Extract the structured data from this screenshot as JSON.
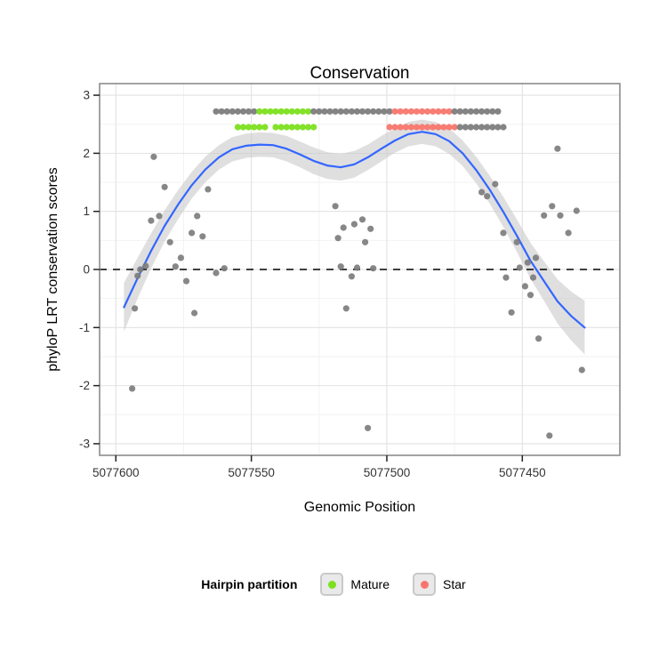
{
  "chart_data": {
    "type": "scatter",
    "title": "Conservation",
    "xlabel": "Genomic Position",
    "ylabel": "phyloP LRT conservation scores",
    "x_reversed": true,
    "x_domain": [
      5077606,
      5077414
    ],
    "y_domain": [
      -3.2,
      3.2
    ],
    "x_ticks": [
      {
        "value": 5077600,
        "label": "5077600"
      },
      {
        "value": 5077550,
        "label": "5077550"
      },
      {
        "value": 5077500,
        "label": "5077500"
      },
      {
        "value": 5077450,
        "label": "5077450"
      }
    ],
    "y_ticks": [
      {
        "value": 3,
        "label": "3"
      },
      {
        "value": 2,
        "label": "2"
      },
      {
        "value": 1,
        "label": "1"
      },
      {
        "value": 0,
        "label": "0"
      },
      {
        "value": -1,
        "label": "-1"
      },
      {
        "value": -2,
        "label": "-2"
      },
      {
        "value": -3,
        "label": "-3"
      }
    ],
    "x_minor": [
      5077575,
      5077525,
      5077475
    ],
    "y_minor": [
      2.5,
      1.5,
      0.5,
      -0.5,
      -1.5,
      -2.5
    ],
    "zero_line_y": 0,
    "colors": {
      "point": "#7d7d7d",
      "smooth": "#3366FF",
      "band": "#c9c9c9",
      "mature": "#7CE01E",
      "star": "#F8766D",
      "grid_major": "#e2e2e2",
      "grid_minor": "#f2f2f2",
      "panel_border": "#8c8c8c",
      "tick_text": "#333333",
      "zero_line": "#000000"
    },
    "scatter": [
      [
        5077594,
        -2.05
      ],
      [
        5077593,
        -0.67
      ],
      [
        5077592,
        -0.11
      ],
      [
        5077591,
        0.0
      ],
      [
        5077589,
        0.06
      ],
      [
        5077587,
        0.84
      ],
      [
        5077586,
        1.94
      ],
      [
        5077584,
        0.92
      ],
      [
        5077582,
        1.42
      ],
      [
        5077580,
        0.47
      ],
      [
        5077578,
        0.05
      ],
      [
        5077576,
        0.2
      ],
      [
        5077574,
        -0.2
      ],
      [
        5077572,
        0.63
      ],
      [
        5077571,
        -0.75
      ],
      [
        5077570,
        0.92
      ],
      [
        5077568,
        0.57
      ],
      [
        5077566,
        1.38
      ],
      [
        5077563,
        -0.06
      ],
      [
        5077560,
        0.02
      ],
      [
        5077519,
        1.09
      ],
      [
        5077518,
        0.54
      ],
      [
        5077517,
        0.05
      ],
      [
        5077516,
        0.72
      ],
      [
        5077515,
        -0.67
      ],
      [
        5077513,
        -0.12
      ],
      [
        5077512,
        0.78
      ],
      [
        5077511,
        0.03
      ],
      [
        5077509,
        0.86
      ],
      [
        5077508,
        0.47
      ],
      [
        5077507,
        -2.73
      ],
      [
        5077506,
        0.7
      ],
      [
        5077505,
        0.02
      ],
      [
        5077465,
        1.33
      ],
      [
        5077463,
        1.26
      ],
      [
        5077460,
        1.47
      ],
      [
        5077457,
        0.63
      ],
      [
        5077456,
        -0.14
      ],
      [
        5077454,
        -0.74
      ],
      [
        5077452,
        0.47
      ],
      [
        5077451,
        0.03
      ],
      [
        5077449,
        -0.29
      ],
      [
        5077448,
        0.12
      ],
      [
        5077447,
        -0.44
      ],
      [
        5077446,
        -0.14
      ],
      [
        5077445,
        0.2
      ],
      [
        5077444,
        -1.19
      ],
      [
        5077442,
        0.93
      ],
      [
        5077440,
        -2.86
      ],
      [
        5077439,
        1.09
      ],
      [
        5077437,
        2.08
      ],
      [
        5077436,
        0.93
      ],
      [
        5077433,
        0.63
      ],
      [
        5077430,
        1.01
      ],
      [
        5077428,
        -1.73
      ]
    ],
    "partition_rows": [
      {
        "y": 2.72,
        "runs": [
          {
            "color": "gray",
            "from": 5077563,
            "to": 5077549,
            "step": 2
          },
          {
            "color": "mature",
            "from": 5077547,
            "to": 5077529,
            "step": 2
          },
          {
            "color": "gray",
            "from": 5077527,
            "to": 5077499,
            "step": 2
          },
          {
            "color": "star",
            "from": 5077497,
            "to": 5077477,
            "step": 2
          },
          {
            "color": "gray",
            "from": 5077475,
            "to": 5077459,
            "step": 2
          }
        ]
      },
      {
        "y": 2.45,
        "runs": [
          {
            "color": "mature",
            "from": 5077555,
            "to": 5077545,
            "step": 2
          },
          {
            "color": "mature",
            "from": 5077541,
            "to": 5077527,
            "step": 2
          },
          {
            "color": "star",
            "from": 5077499,
            "to": 5077475,
            "step": 2
          },
          {
            "color": "gray",
            "from": 5077473,
            "to": 5077457,
            "step": 2
          }
        ]
      }
    ],
    "smooth": {
      "pos": [
        5077597,
        5077592,
        5077587,
        5077582,
        5077577,
        5077572,
        5077567,
        5077562,
        5077557,
        5077552,
        5077547,
        5077542,
        5077537,
        5077532,
        5077527,
        5077522,
        5077517,
        5077512,
        5077507,
        5077502,
        5077497,
        5077492,
        5077487,
        5077482,
        5077477,
        5077472,
        5077467,
        5077462,
        5077457,
        5077452,
        5077447,
        5077442,
        5077437,
        5077432,
        5077427
      ],
      "fit": [
        -0.65,
        -0.15,
        0.32,
        0.75,
        1.12,
        1.45,
        1.72,
        1.93,
        2.07,
        2.13,
        2.15,
        2.14,
        2.08,
        1.98,
        1.87,
        1.79,
        1.76,
        1.81,
        1.93,
        2.08,
        2.22,
        2.33,
        2.37,
        2.33,
        2.21,
        2.0,
        1.71,
        1.37,
        0.99,
        0.58,
        0.15,
        -0.2,
        -0.55,
        -0.8,
        -1.0
      ],
      "ci": [
        0.42,
        0.35,
        0.3,
        0.27,
        0.25,
        0.23,
        0.22,
        0.21,
        0.21,
        0.21,
        0.21,
        0.21,
        0.22,
        0.22,
        0.23,
        0.23,
        0.23,
        0.23,
        0.22,
        0.22,
        0.21,
        0.21,
        0.21,
        0.21,
        0.22,
        0.22,
        0.23,
        0.24,
        0.26,
        0.28,
        0.31,
        0.34,
        0.38,
        0.42,
        0.46
      ]
    }
  },
  "legend": {
    "title": "Hairpin partition",
    "items": [
      {
        "label": "Mature",
        "color_key": "mature"
      },
      {
        "label": "Star",
        "color_key": "star"
      }
    ]
  }
}
